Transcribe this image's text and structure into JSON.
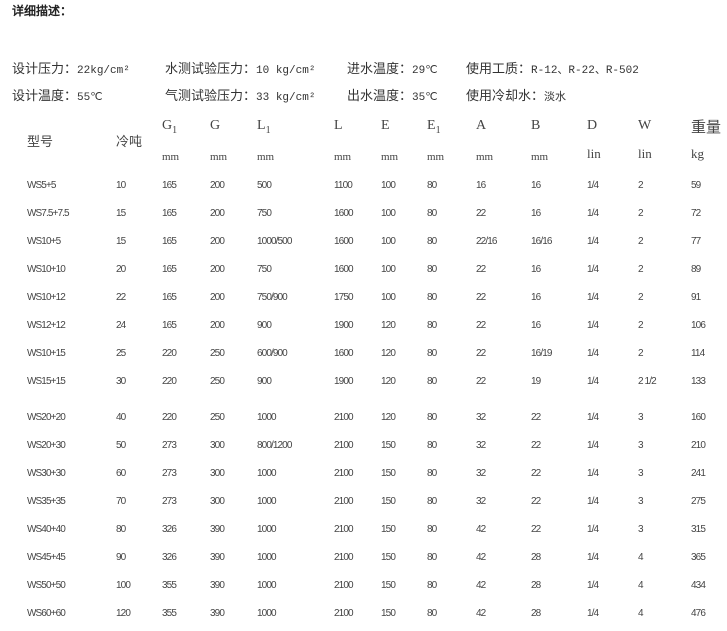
{
  "title": "详细描述：",
  "specs": [
    {
      "label": "设计压力：",
      "value": "22kg/cm²"
    },
    {
      "label": "水测试验压力：",
      "value": "10 kg/cm²"
    },
    {
      "label": "进水温度：",
      "value": "29℃"
    },
    {
      "label": "使用工质：",
      "value": "R-12、R-22、R-502"
    },
    {
      "label": "设计温度：",
      "value": "55℃"
    },
    {
      "label": "气测试验压力：",
      "value": "33 kg/cm²"
    },
    {
      "label": "出水温度：",
      "value": "35℃"
    },
    {
      "label": "使用冷却水：",
      "value": "淡水"
    }
  ],
  "table": {
    "columns": [
      {
        "key": "model",
        "label": "型号",
        "sub": "",
        "unit": ""
      },
      {
        "key": "tons",
        "label": "冷吨",
        "sub": "",
        "unit": ""
      },
      {
        "key": "g1",
        "label": "G",
        "sub": "1",
        "unit": "mm"
      },
      {
        "key": "g",
        "label": "G",
        "sub": "",
        "unit": "mm"
      },
      {
        "key": "l1",
        "label": "L",
        "sub": "1",
        "unit": "mm"
      },
      {
        "key": "l",
        "label": "L",
        "sub": "",
        "unit": "mm"
      },
      {
        "key": "e",
        "label": "E",
        "sub": "",
        "unit": "mm"
      },
      {
        "key": "e1",
        "label": "E",
        "sub": "1",
        "unit": "mm"
      },
      {
        "key": "a",
        "label": "A",
        "sub": "",
        "unit": "mm"
      },
      {
        "key": "b",
        "label": "B",
        "sub": "",
        "unit": "mm"
      },
      {
        "key": "d",
        "label": "D",
        "sub": "",
        "unit": "lin"
      },
      {
        "key": "w",
        "label": "W",
        "sub": "",
        "unit": "lin"
      },
      {
        "key": "weight",
        "label": "重量",
        "sub": "",
        "unit": "kg"
      }
    ],
    "rows": [
      [
        "WS5+5",
        "10",
        "165",
        "200",
        "500",
        "1100",
        "100",
        "80",
        "16",
        "16",
        "1/4",
        "2",
        "59"
      ],
      [
        "WS7.5+7.5",
        "15",
        "165",
        "200",
        "750",
        "1600",
        "100",
        "80",
        "22",
        "16",
        "1/4",
        "2",
        "72"
      ],
      [
        "WS10+5",
        "15",
        "165",
        "200",
        "1000/500",
        "1600",
        "100",
        "80",
        "22/16",
        "16/16",
        "1/4",
        "2",
        "77"
      ],
      [
        "WS10+10",
        "20",
        "165",
        "200",
        "750",
        "1600",
        "100",
        "80",
        "22",
        "16",
        "1/4",
        "2",
        "89"
      ],
      [
        "WS10+12",
        "22",
        "165",
        "200",
        "750/900",
        "1750",
        "100",
        "80",
        "22",
        "16",
        "1/4",
        "2",
        "91"
      ],
      [
        "WS12+12",
        "24",
        "165",
        "200",
        "900",
        "1900",
        "120",
        "80",
        "22",
        "16",
        "1/4",
        "2",
        "106"
      ],
      [
        "WS10+15",
        "25",
        "220",
        "250",
        "600/900",
        "1600",
        "120",
        "80",
        "22",
        "16/19",
        "1/4",
        "2",
        "114"
      ],
      [
        "WS15+15",
        "30",
        "220",
        "250",
        "900",
        "1900",
        "120",
        "80",
        "22",
        "19",
        "1/4",
        "2 1/2",
        "133"
      ],
      [
        "WS20+20",
        "40",
        "220",
        "250",
        "1000",
        "2100",
        "120",
        "80",
        "32",
        "22",
        "1/4",
        "3",
        "160"
      ],
      [
        "WS20+30",
        "50",
        "273",
        "300",
        "800/1200",
        "2100",
        "150",
        "80",
        "32",
        "22",
        "1/4",
        "3",
        "210"
      ],
      [
        "WS30+30",
        "60",
        "273",
        "300",
        "1000",
        "2100",
        "150",
        "80",
        "32",
        "22",
        "1/4",
        "3",
        "241"
      ],
      [
        "WS35+35",
        "70",
        "273",
        "300",
        "1000",
        "2100",
        "150",
        "80",
        "32",
        "22",
        "1/4",
        "3",
        "275"
      ],
      [
        "WS40+40",
        "80",
        "326",
        "390",
        "1000",
        "2100",
        "150",
        "80",
        "42",
        "22",
        "1/4",
        "3",
        "315"
      ],
      [
        "WS45+45",
        "90",
        "326",
        "390",
        "1000",
        "2100",
        "150",
        "80",
        "42",
        "28",
        "1/4",
        "4",
        "365"
      ],
      [
        "WS50+50",
        "100",
        "355",
        "390",
        "1000",
        "2100",
        "150",
        "80",
        "42",
        "28",
        "1/4",
        "4",
        "434"
      ],
      [
        "WS60+60",
        "120",
        "355",
        "390",
        "1000",
        "2100",
        "150",
        "80",
        "42",
        "28",
        "1/4",
        "4",
        "476"
      ]
    ]
  }
}
